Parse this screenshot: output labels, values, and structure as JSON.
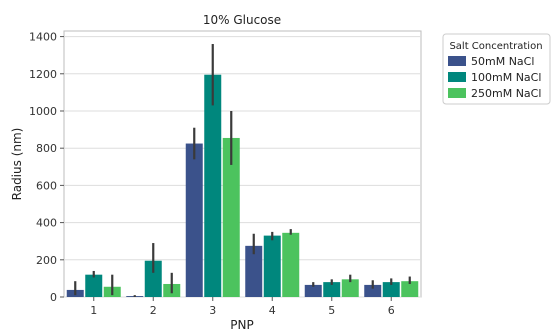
{
  "chart_data": {
    "type": "bar",
    "title": "10% Glucose",
    "xlabel": "PNP",
    "ylabel": "Radius (nm)",
    "ylim": [
      0,
      1430
    ],
    "yticks": [
      0,
      200,
      400,
      600,
      800,
      1000,
      1200,
      1400
    ],
    "categories": [
      "1",
      "2",
      "3",
      "4",
      "5",
      "6"
    ],
    "grid": "horizontal",
    "legend": {
      "title": "Salt Concentration",
      "placement": "outside-right"
    },
    "series": [
      {
        "name": "50mM NaCl",
        "color": "#3b528b",
        "values": [
          38,
          5,
          825,
          275,
          65,
          65
        ],
        "errors": [
          [
            10,
            85
          ],
          [
            0,
            10
          ],
          [
            740,
            910
          ],
          [
            230,
            340
          ],
          [
            55,
            80
          ],
          [
            45,
            90
          ]
        ]
      },
      {
        "name": "100mM NaCl",
        "color": "#00877d",
        "values": [
          120,
          195,
          1195,
          330,
          80,
          80
        ],
        "errors": [
          [
            105,
            140
          ],
          [
            130,
            290
          ],
          [
            1030,
            1360
          ],
          [
            305,
            350
          ],
          [
            65,
            95
          ],
          [
            65,
            100
          ]
        ]
      },
      {
        "name": "250mM NaCl",
        "color": "#4cc35e",
        "values": [
          55,
          70,
          855,
          345,
          95,
          85
        ],
        "errors": [
          [
            10,
            120
          ],
          [
            20,
            130
          ],
          [
            710,
            1000
          ],
          [
            335,
            365
          ],
          [
            80,
            120
          ],
          [
            70,
            110
          ]
        ]
      }
    ]
  }
}
